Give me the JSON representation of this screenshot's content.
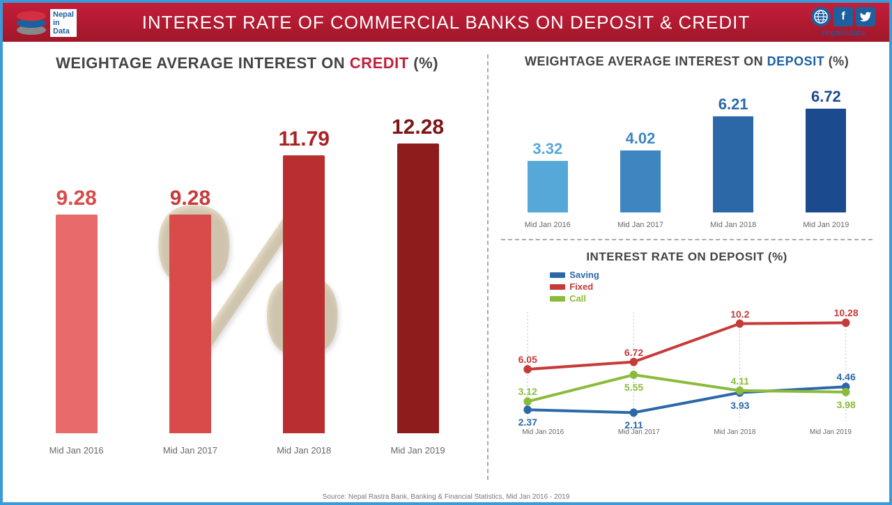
{
  "header": {
    "title": "INTEREST RATE OF COMMERCIAL BANKS ON DEPOSIT & CREDIT",
    "logo_lines": [
      "Nepal",
      "in",
      "Data"
    ],
    "social_handle": "nepalindata",
    "header_bg_from": "#c41e3a",
    "header_bg_to": "#a01729"
  },
  "credit_chart": {
    "title_prefix": "WEIGHTAGE AVERAGE INTEREST ON ",
    "title_accent": "CREDIT",
    "title_suffix": " (%)",
    "type": "bar",
    "categories": [
      "Mid Jan 2016",
      "Mid Jan 2017",
      "Mid Jan 2018",
      "Mid Jan 2019"
    ],
    "values": [
      9.28,
      9.28,
      11.79,
      12.28
    ],
    "bar_colors": [
      "#e96a6a",
      "#d94a4a",
      "#b92e2e",
      "#8f1c1c"
    ],
    "value_colors": [
      "#d94a4a",
      "#c73a3a",
      "#a82424",
      "#7d1515"
    ],
    "max": 13,
    "value_fontsize": 30,
    "label_fontsize": 13,
    "bg_symbol": "%"
  },
  "deposit_chart": {
    "title_prefix": "WEIGHTAGE AVERAGE INTEREST ON ",
    "title_accent": "DEPOSIT",
    "title_suffix": " (%)",
    "type": "bar",
    "categories": [
      "Mid Jan 2016",
      "Mid Jan 2017",
      "Mid Jan 2018",
      "Mid Jan 2019"
    ],
    "values": [
      3.32,
      4.02,
      6.21,
      6.72
    ],
    "bar_colors": [
      "#56a8d8",
      "#3d86c0",
      "#2c68a8",
      "#1b4a8f"
    ],
    "value_colors": [
      "#56a8d8",
      "#3d86c0",
      "#2c68a8",
      "#1b4a8f"
    ],
    "max": 7.2,
    "value_fontsize": 22,
    "label_fontsize": 11
  },
  "line_chart": {
    "title": "INTEREST RATE ON DEPOSIT (%)",
    "type": "line",
    "categories": [
      "Mid Jan 2016",
      "Mid Jan 2017",
      "Mid Jan 2018",
      "Mid Jan 2019"
    ],
    "ymin": 1.5,
    "ymax": 11,
    "series": [
      {
        "name": "Saving",
        "color": "#2c68a8",
        "values": [
          2.37,
          2.11,
          3.93,
          4.46
        ],
        "label_offsets": [
          "below",
          "below",
          "below",
          "above"
        ]
      },
      {
        "name": "Fixed",
        "color": "#c73a3a",
        "values": [
          6.05,
          6.72,
          10.2,
          10.28
        ],
        "label_offsets": [
          "above",
          "above",
          "above",
          "above"
        ]
      },
      {
        "name": "Call",
        "color": "#8bbb3a",
        "values": [
          3.12,
          5.55,
          4.11,
          3.98
        ],
        "label_offsets": [
          "above",
          "below",
          "above",
          "below"
        ]
      }
    ],
    "marker_radius": 6,
    "line_width": 4,
    "label_fontsize": 14
  },
  "footer": {
    "text": "Source: Nepal Rastra Bank, Banking & Financial Statistics, Mid Jan 2016 - 2019"
  },
  "border_color": "#3a9bd6"
}
